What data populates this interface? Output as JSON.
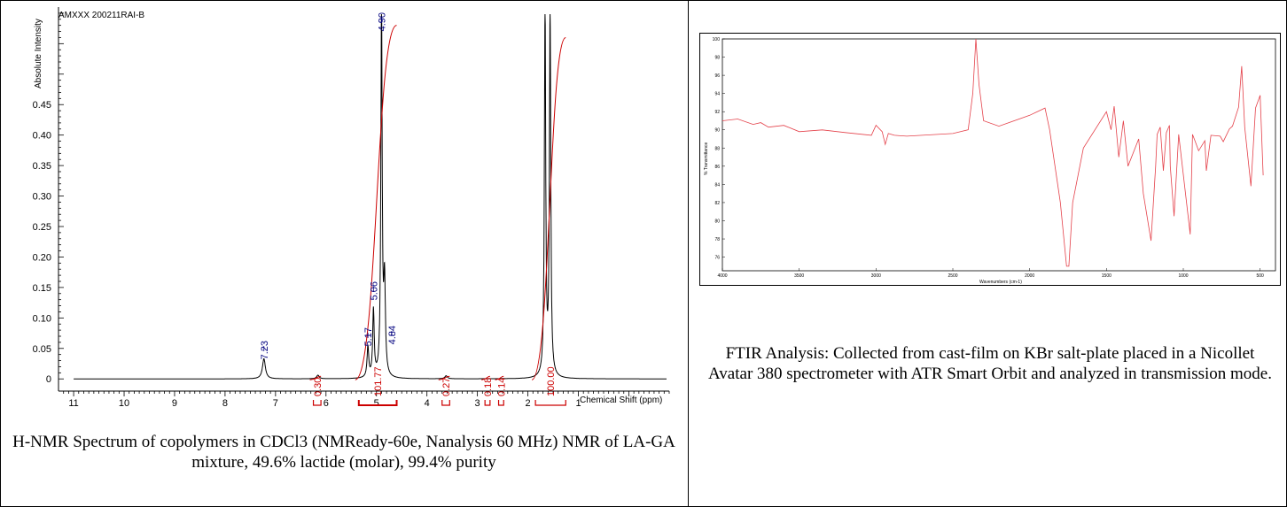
{
  "chart_data": [
    {
      "type": "line",
      "title": "AMXXX 200211RAI-B",
      "xlabel": "Chemical Shift (ppm)",
      "ylabel": "Absolute Intensity",
      "xlim": [
        11.3,
        -0.8
      ],
      "ylim": [
        -0.02,
        0.61
      ],
      "x_ticks": [
        "11",
        "10",
        "9",
        "8",
        "7",
        "6",
        "5",
        "4",
        "3",
        "2",
        "1"
      ],
      "y_ticks": [
        "0",
        "0.05",
        "0.10",
        "0.15",
        "0.20",
        "0.25",
        "0.30",
        "0.35",
        "0.40",
        "0.45"
      ],
      "peaks": [
        {
          "ppm": 7.23,
          "intensity": 0.033
        },
        {
          "ppm": 6.16,
          "intensity": 0.006
        },
        {
          "ppm": 5.17,
          "intensity": 0.05
        },
        {
          "ppm": 5.06,
          "intensity": 0.11
        },
        {
          "ppm": 4.9,
          "intensity": 0.6
        },
        {
          "ppm": 4.84,
          "intensity": 0.15
        },
        {
          "ppm": 3.62,
          "intensity": 0.005
        },
        {
          "ppm": 1.66,
          "intensity": 0.6
        },
        {
          "ppm": 1.56,
          "intensity": 0.6
        }
      ],
      "peak_labels": [
        "7.23",
        "5.17",
        "5.06",
        "4.90",
        "4.84"
      ],
      "integrals": [
        {
          "from": 6.25,
          "to": 6.1,
          "value": "0.30"
        },
        {
          "from": 5.35,
          "to": 4.6,
          "value": "101.77"
        },
        {
          "from": 3.7,
          "to": 3.55,
          "value": "0.27"
        },
        {
          "from": 2.85,
          "to": 2.75,
          "value": "0.18"
        },
        {
          "from": 2.58,
          "to": 2.48,
          "value": "0.14"
        },
        {
          "from": 1.85,
          "to": 1.25,
          "value": "100.00"
        }
      ],
      "colors": {
        "spectrum": "#000000",
        "integral": "#cc0000",
        "label": "#00007f"
      }
    },
    {
      "type": "line",
      "xlabel": "Wavenumbers (cm-1)",
      "ylabel": "% Transmittance",
      "xlim": [
        4000,
        400
      ],
      "ylim": [
        74.5,
        100
      ],
      "x_ticks": [
        "4000",
        "3500",
        "3000",
        "2500",
        "2000",
        "1500",
        "1000",
        "500"
      ],
      "y_ticks": [
        "76",
        "78",
        "80",
        "82",
        "84",
        "86",
        "88",
        "90",
        "92",
        "94",
        "96",
        "98",
        "100"
      ],
      "series": [
        {
          "x": [
            4000,
            3800,
            3700,
            3500,
            3200,
            3030,
            3000,
            2960,
            2940,
            2920,
            2880,
            2800,
            2500,
            2400,
            2370,
            2350,
            2330,
            2300,
            2200,
            2000,
            1900,
            1870,
            1800,
            1760,
            1745,
            1720,
            1650,
            1500,
            1470,
            1450,
            1420,
            1390,
            1360,
            1290,
            1260,
            1210,
            1180,
            1170,
            1150,
            1130,
            1110,
            1090,
            1085,
            1060,
            1030,
            955,
            940,
            920,
            900,
            860,
            850,
            820,
            760,
            740,
            700,
            680,
            640,
            620,
            600,
            560,
            530,
            500,
            480
          ],
          "y": [
            91,
            90.6,
            90.3,
            89.8,
            89.7,
            89.4,
            90.5,
            89.8,
            88.4,
            89.6,
            89.4,
            89.3,
            89.6,
            90,
            94,
            100,
            95,
            91,
            90.4,
            91.6,
            92.4,
            90,
            82,
            75,
            75,
            82,
            88,
            92,
            90,
            92.6,
            87,
            91,
            86,
            89,
            83,
            77.8,
            86,
            89.5,
            90.3,
            85.5,
            89.7,
            90.5,
            86,
            80.5,
            89.5,
            78.5,
            89.5,
            88.6,
            87.7,
            88.8,
            85.5,
            89.4,
            89.3,
            88.7,
            90.1,
            90.4,
            92.5,
            97,
            90.3,
            83.8,
            92.4,
            93.8,
            85
          ]
        }
      ],
      "colors": {
        "trace": "#e4414a"
      }
    }
  ],
  "captions": {
    "nmr": "H-NMR Spectrum of copolymers in CDCl3 (NMReady-60e, Nanalysis 60 MHz) NMR of LA-GA mixture, 49.6% lactide (molar), 99.4% purity",
    "ftir": "FTIR Analysis: Collected from cast-film on KBr salt-plate placed in a Nicollet Avatar 380 spectrometer with ATR Smart Orbit and analyzed in transmission mode."
  }
}
